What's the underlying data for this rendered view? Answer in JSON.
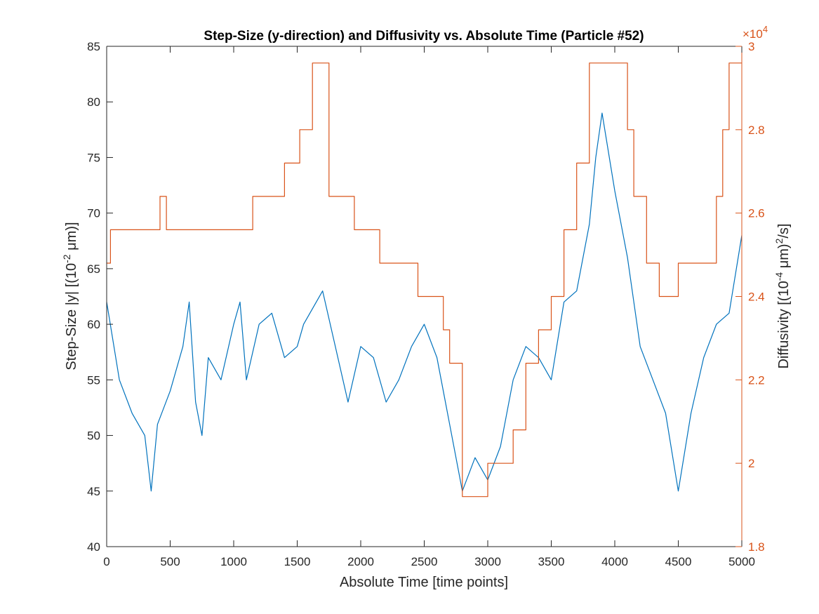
{
  "colors": {
    "background": "#ffffff",
    "axis": "#262626",
    "series_left": "#0072BD",
    "series_right": "#D95319"
  },
  "chart_data": {
    "type": "line",
    "title": "Step-Size (y-direction) and Diffusivity vs. Absolute Time (Particle #52)",
    "xlabel": "Absolute Time [time points]",
    "ylabel_left": "Step-Size |y| [(10^-2 μm)]",
    "ylabel_right": "Diffusivity [(10^-4 μm)^2/s]",
    "right_axis_exponent": "×10^4",
    "xlim": [
      0,
      5000
    ],
    "ylim_left": [
      40,
      85
    ],
    "ylim_right": [
      18000,
      30000
    ],
    "x_ticks": [
      0,
      500,
      1000,
      1500,
      2000,
      2500,
      3000,
      3500,
      4000,
      4500,
      5000
    ],
    "y_ticks_left": [
      40,
      45,
      50,
      55,
      60,
      65,
      70,
      75,
      80,
      85
    ],
    "y_ticks_right": [
      {
        "value": 18000,
        "label": "1.8"
      },
      {
        "value": 20000,
        "label": "2"
      },
      {
        "value": 22000,
        "label": "2.2"
      },
      {
        "value": 24000,
        "label": "2.4"
      },
      {
        "value": 26000,
        "label": "2.6"
      },
      {
        "value": 28000,
        "label": "2.8"
      },
      {
        "value": 30000,
        "label": "3"
      }
    ],
    "grid": false,
    "series": [
      {
        "axis": "left",
        "color": "#0072BD",
        "x": [
          0,
          100,
          200,
          300,
          350,
          400,
          500,
          600,
          650,
          700,
          750,
          800,
          900,
          1000,
          1050,
          1100,
          1200,
          1300,
          1400,
          1500,
          1550,
          1600,
          1700,
          1800,
          1900,
          2000,
          2100,
          2200,
          2300,
          2400,
          2500,
          2600,
          2700,
          2800,
          2900,
          3000,
          3100,
          3200,
          3300,
          3400,
          3500,
          3600,
          3700,
          3800,
          3850,
          3900,
          4000,
          4100,
          4200,
          4300,
          4400,
          4500,
          4600,
          4700,
          4800,
          4900,
          5000
        ],
        "values": [
          62,
          55,
          52,
          50,
          45,
          51,
          54,
          58,
          62,
          53,
          50,
          57,
          55,
          60,
          62,
          55,
          60,
          61,
          57,
          58,
          60,
          61,
          63,
          58,
          53,
          58,
          57,
          53,
          55,
          58,
          60,
          57,
          51,
          45,
          48,
          46,
          49,
          55,
          58,
          57,
          55,
          62,
          63,
          69,
          75,
          79,
          72,
          66,
          58,
          55,
          52,
          45,
          52,
          57,
          60,
          61,
          68
        ]
      },
      {
        "axis": "right",
        "color": "#D95319",
        "x": [
          0,
          30,
          100,
          420,
          470,
          600,
          1000,
          1150,
          1300,
          1400,
          1520,
          1620,
          1750,
          1950,
          2150,
          2300,
          2450,
          2650,
          2700,
          2800,
          3000,
          3100,
          3200,
          3300,
          3400,
          3500,
          3600,
          3700,
          3800,
          4100,
          4150,
          4250,
          4350,
          4500,
          4800,
          4850,
          4900,
          5000
        ],
        "values": [
          24800,
          25600,
          25600,
          26400,
          25600,
          25600,
          25600,
          26400,
          26400,
          27200,
          28000,
          29600,
          26400,
          25600,
          24800,
          24800,
          24000,
          23200,
          22400,
          19200,
          20000,
          20000,
          20800,
          22400,
          23200,
          24000,
          25600,
          27200,
          29600,
          28000,
          26400,
          24800,
          24000,
          24800,
          26400,
          28000,
          29600,
          29600
        ]
      }
    ]
  }
}
